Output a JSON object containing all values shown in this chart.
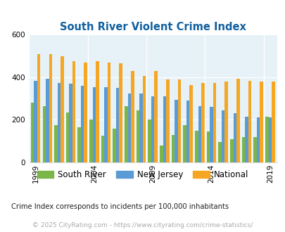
{
  "title": "South River Violent Crime Index",
  "years": [
    1999,
    2000,
    2001,
    2002,
    2003,
    2004,
    2005,
    2006,
    2007,
    2008,
    2009,
    2010,
    2011,
    2012,
    2013,
    2014,
    2015,
    2016,
    2017,
    2018,
    2019
  ],
  "south_river": [
    280,
    265,
    175,
    235,
    165,
    200,
    125,
    160,
    265,
    245,
    200,
    80,
    130,
    175,
    150,
    145,
    95,
    110,
    120,
    120,
    215
  ],
  "new_jersey": [
    385,
    395,
    375,
    370,
    360,
    355,
    355,
    350,
    325,
    325,
    310,
    310,
    295,
    290,
    265,
    260,
    245,
    230,
    215,
    210,
    210
  ],
  "national": [
    510,
    510,
    500,
    475,
    470,
    475,
    470,
    465,
    430,
    405,
    430,
    390,
    390,
    365,
    375,
    375,
    380,
    395,
    385,
    380,
    380
  ],
  "south_river_color": "#7ab648",
  "new_jersey_color": "#5b9bd5",
  "national_color": "#f5a623",
  "bg_color": "#e6f2f7",
  "ylim": [
    0,
    600
  ],
  "yticks": [
    0,
    200,
    400,
    600
  ],
  "legend_labels": [
    "South River",
    "New Jersey",
    "National"
  ],
  "footnote1": "Crime Index corresponds to incidents per 100,000 inhabitants",
  "footnote2": "© 2025 CityRating.com - https://www.cityrating.com/crime-statistics/",
  "xtick_years": [
    1999,
    2004,
    2009,
    2014,
    2019
  ],
  "title_color": "#1060a0",
  "footnote1_color": "#222222",
  "footnote2_color": "#aaaaaa"
}
